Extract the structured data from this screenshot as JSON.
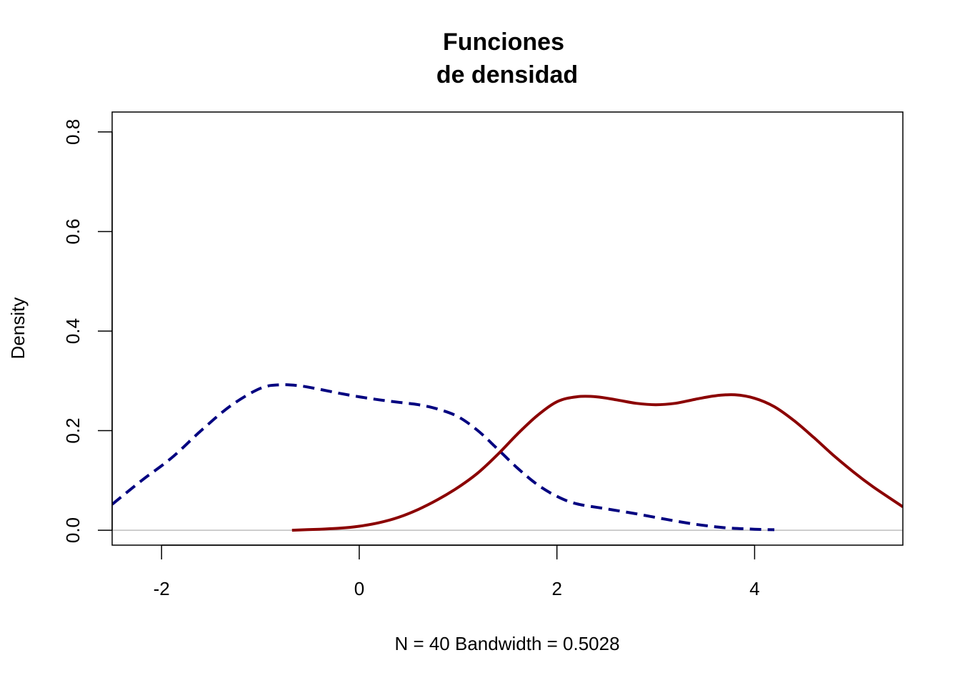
{
  "chart_data": {
    "type": "line",
    "title_lines": [
      "Funciones",
      "de densidad"
    ],
    "xlabel": "N = 40   Bandwidth = 0.5028",
    "ylabel": "Density",
    "xlim": [
      -2.5,
      5.5
    ],
    "ylim": [
      -0.03,
      0.84
    ],
    "x_ticks": [
      -2,
      0,
      2,
      4
    ],
    "x_tick_labels": [
      "-2",
      "0",
      "2",
      "4"
    ],
    "y_ticks": [
      0.0,
      0.2,
      0.4,
      0.6,
      0.8
    ],
    "y_tick_labels": [
      "0.0",
      "0.2",
      "0.4",
      "0.6",
      "0.8"
    ],
    "baseline": 0,
    "grid": false,
    "series": [
      {
        "style": "dashed",
        "color": "#000080",
        "x": [
          -2.5,
          -2.2,
          -1.9,
          -1.6,
          -1.3,
          -1.0,
          -0.8,
          -0.6,
          -0.4,
          -0.2,
          0.0,
          0.2,
          0.4,
          0.6,
          0.8,
          1.0,
          1.2,
          1.4,
          1.6,
          1.8,
          2.0,
          2.2,
          2.5,
          2.8,
          3.1,
          3.4,
          3.7,
          4.0,
          4.2
        ],
        "y": [
          0.052,
          0.1,
          0.145,
          0.2,
          0.25,
          0.285,
          0.292,
          0.29,
          0.283,
          0.275,
          0.268,
          0.262,
          0.257,
          0.252,
          0.243,
          0.228,
          0.2,
          0.163,
          0.125,
          0.092,
          0.068,
          0.053,
          0.043,
          0.033,
          0.022,
          0.012,
          0.005,
          0.002,
          0.001
        ]
      },
      {
        "style": "solid",
        "color": "#8B0000",
        "x": [
          -0.68,
          -0.4,
          -0.2,
          0.0,
          0.2,
          0.4,
          0.6,
          0.8,
          1.0,
          1.2,
          1.4,
          1.6,
          1.8,
          2.0,
          2.2,
          2.4,
          2.6,
          2.8,
          3.0,
          3.2,
          3.4,
          3.6,
          3.8,
          4.0,
          4.2,
          4.4,
          4.6,
          4.8,
          5.0,
          5.2,
          5.5
        ],
        "y": [
          0.0,
          0.002,
          0.004,
          0.008,
          0.015,
          0.026,
          0.042,
          0.062,
          0.086,
          0.115,
          0.152,
          0.193,
          0.23,
          0.258,
          0.268,
          0.268,
          0.262,
          0.255,
          0.252,
          0.255,
          0.263,
          0.27,
          0.272,
          0.265,
          0.248,
          0.22,
          0.186,
          0.15,
          0.117,
          0.087,
          0.047
        ]
      }
    ]
  }
}
